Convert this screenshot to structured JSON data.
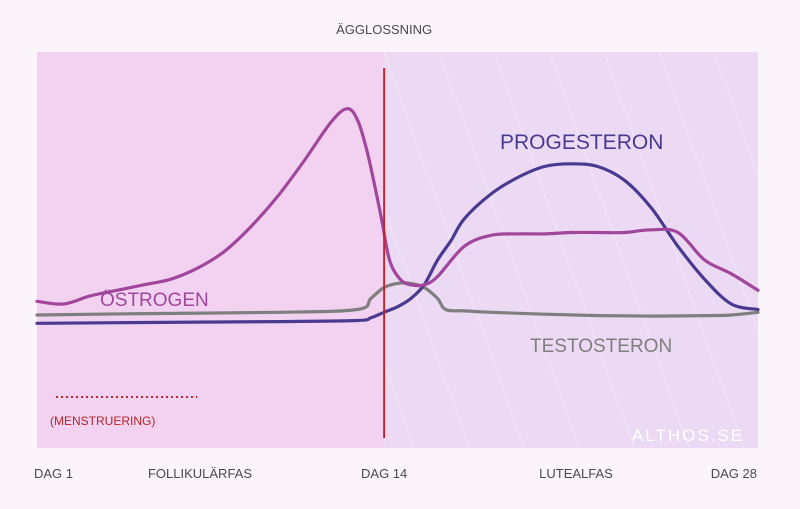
{
  "chart_data": {
    "type": "line",
    "title": "",
    "xlabel": "",
    "ylabel": "",
    "xlim": [
      1,
      28
    ],
    "ylim": [
      0,
      100
    ],
    "grid": false,
    "x_ticks": [
      {
        "x": 1,
        "label": "DAG 1"
      },
      {
        "x": 14,
        "label": "DAG 14"
      },
      {
        "x": 28,
        "label": "DAG 28"
      }
    ],
    "phases": [
      {
        "name": "FOLLIKULÄRFAS",
        "start": 1,
        "end": 14,
        "color": "#f2d2f0"
      },
      {
        "name": "LUTEALFAS",
        "start": 14,
        "end": 28,
        "color": "#ecd9f3"
      }
    ],
    "events": [
      {
        "label": "ÄGGLOSSNING",
        "x": 14,
        "color": "#c1272d"
      }
    ],
    "menstruation": {
      "label": "(MENSTRUERING)",
      "start": 1,
      "end": 7,
      "color": "#c1272d"
    },
    "series": [
      {
        "name": "ÖSTROGEN",
        "color": "#a0479b",
        "x": [
          1,
          2,
          3,
          4,
          5,
          6,
          7,
          8,
          9,
          10,
          11,
          12,
          12.6,
          13,
          13.4,
          13.9,
          14.2,
          14.6,
          15,
          15.5,
          16,
          17,
          18,
          19,
          20,
          21,
          22,
          23,
          24,
          25,
          26,
          27,
          28
        ],
        "y": [
          25,
          24,
          27,
          29,
          31,
          33,
          37,
          43,
          52,
          63,
          76,
          90,
          95,
          91,
          78,
          55,
          40,
          33,
          31,
          31,
          34,
          45,
          49,
          49.5,
          49.5,
          50,
          50,
          50,
          51,
          50,
          40,
          35,
          29
        ]
      },
      {
        "name": "PROGESTERON",
        "color": "#4a3a8f",
        "x": [
          1,
          4,
          7,
          10,
          13,
          13.5,
          14,
          14.5,
          15,
          15.5,
          16,
          16.5,
          17,
          18,
          19,
          20,
          21,
          22,
          23,
          24,
          25,
          26,
          27,
          28
        ],
        "y": [
          17,
          17.2,
          17.4,
          17.6,
          18,
          19,
          21,
          23,
          26,
          31,
          40,
          47,
          55,
          64,
          70,
          74,
          75,
          74,
          69,
          59,
          45,
          33,
          24,
          22
        ]
      },
      {
        "name": "TESTOSTERON",
        "color": "#7f7f7f",
        "x": [
          1,
          5,
          10,
          13,
          13.5,
          14,
          14.5,
          15,
          15.5,
          16,
          16.3,
          17,
          18,
          20,
          22,
          24,
          26,
          27,
          28
        ],
        "y": [
          20,
          20.5,
          21,
          22,
          26,
          30,
          31.5,
          31.5,
          30,
          26,
          22,
          21.5,
          21,
          20.3,
          19.8,
          19.6,
          19.8,
          20,
          21
        ]
      }
    ]
  },
  "watermark": "ALTHOS.SE"
}
